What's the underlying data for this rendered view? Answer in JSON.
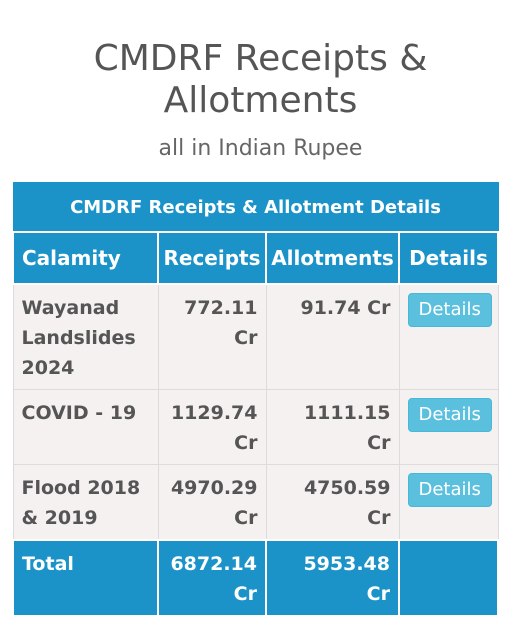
{
  "header": {
    "title": "CMDRF Receipts & Allotments",
    "subtitle": "all in Indian Rupee"
  },
  "table": {
    "caption": "CMDRF Receipts & Allotment Details",
    "columns": [
      "Calamity",
      "Receipts",
      "Allotments",
      "Details"
    ],
    "rows": [
      {
        "calamity": "Wayanad Landslides 2024",
        "receipts": "772.11 Cr",
        "allotments": "91.74 Cr",
        "details_label": "Details"
      },
      {
        "calamity": "COVID - 19",
        "receipts": "1129.74 Cr",
        "allotments": "1111.15 Cr",
        "details_label": "Details"
      },
      {
        "calamity": "Flood 2018 & 2019",
        "receipts": "4970.29 Cr",
        "allotments": "4750.59 Cr",
        "details_label": "Details"
      }
    ],
    "total": {
      "label": "Total",
      "receipts": "6872.14 Cr",
      "allotments": "5953.48 Cr"
    }
  },
  "colors": {
    "header_bg": "#1b93c9",
    "button_bg": "#5bc0de",
    "row_bg": "#f4f1f0"
  }
}
